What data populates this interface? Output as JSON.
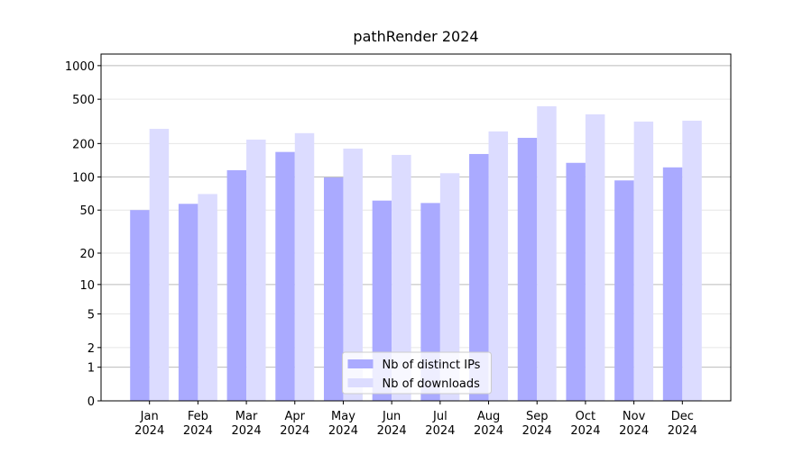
{
  "chart_data": {
    "type": "bar",
    "title": "pathRender 2024",
    "categories": [
      "Jan 2024",
      "Feb 2024",
      "Mar 2024",
      "Apr 2024",
      "May 2024",
      "Jun 2024",
      "Jul 2024",
      "Aug 2024",
      "Sep 2024",
      "Oct 2024",
      "Nov 2024",
      "Dec 2024"
    ],
    "series": [
      {
        "name": "Nb of distinct IPs",
        "color": "#aaaaff",
        "values": [
          50,
          57,
          115,
          168,
          99,
          61,
          58,
          161,
          225,
          134,
          93,
          122
        ]
      },
      {
        "name": "Nb of downloads",
        "color": "#dcdcff",
        "values": [
          271,
          70,
          217,
          248,
          180,
          158,
          108,
          257,
          432,
          366,
          315,
          321
        ]
      }
    ],
    "yscale": "log1p",
    "ylim": [
      0,
      1270
    ],
    "yticks": [
      0,
      1,
      2,
      5,
      10,
      20,
      50,
      100,
      200,
      500,
      1000
    ],
    "grid": true,
    "legend": "lower center"
  }
}
